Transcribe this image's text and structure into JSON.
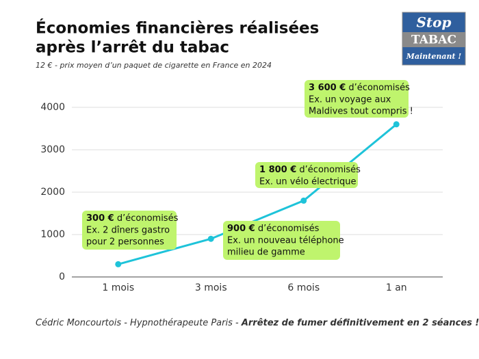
{
  "chart_data": {
    "type": "line",
    "title_lines": [
      "Économies financières réalisées",
      "après l’arrêt du tabac"
    ],
    "subtitle": "12 €  - prix moyen d’un paquet de cigarette en France en 2024",
    "categories": [
      "1 mois",
      "3 mois",
      "6 mois",
      "1 an"
    ],
    "values": [
      300,
      900,
      1800,
      3600
    ],
    "value_labels": [
      "300 €",
      "900 €",
      "1 800 €",
      "3 600 €"
    ],
    "color": "#1ec3d9",
    "ylim": [
      0,
      4000
    ],
    "yticks": [
      0,
      1000,
      2000,
      3000,
      4000
    ],
    "grid": true,
    "annotations": [
      {
        "text": " d’économisés",
        "lines": [
          "Ex. 2 dîners gastro",
          "pour 2 personnes"
        ]
      },
      {
        "text": " d’économisés",
        "lines": [
          "Ex. un nouveau téléphone",
          "milieu de gamme"
        ]
      },
      {
        "text": " d’économisés",
        "lines": [
          "Ex. un vélo électrique"
        ]
      },
      {
        "text": " d’économisés",
        "lines": [
          "Ex. un voyage aux",
          "Maldives tout compris !"
        ]
      }
    ],
    "footer": {
      "text": "Cédric Moncourtois - Hypnothérapeute Paris - ",
      "emphasis": "Arrêtez de fumer définitivement en 2 séances !"
    },
    "logo": {
      "top": "Stop",
      "middle": "TABAC",
      "bottom": "Maintenant !"
    }
  }
}
